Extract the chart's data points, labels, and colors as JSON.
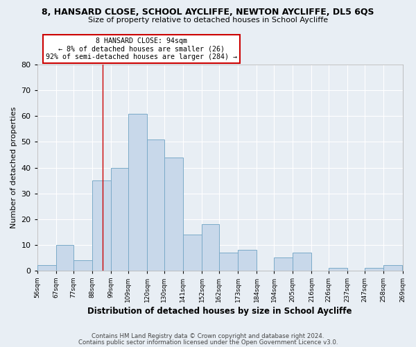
{
  "title1": "8, HANSARD CLOSE, SCHOOL AYCLIFFE, NEWTON AYCLIFFE, DL5 6QS",
  "title2": "Size of property relative to detached houses in School Aycliffe",
  "xlabel": "Distribution of detached houses by size in School Aycliffe",
  "ylabel": "Number of detached properties",
  "bin_edges": [
    56,
    67,
    77,
    88,
    99,
    109,
    120,
    130,
    141,
    152,
    162,
    173,
    184,
    194,
    205,
    216,
    226,
    237,
    247,
    258,
    269
  ],
  "bin_labels": [
    "56sqm",
    "67sqm",
    "77sqm",
    "88sqm",
    "99sqm",
    "109sqm",
    "120sqm",
    "130sqm",
    "141sqm",
    "152sqm",
    "162sqm",
    "173sqm",
    "184sqm",
    "194sqm",
    "205sqm",
    "216sqm",
    "226sqm",
    "237sqm",
    "247sqm",
    "258sqm",
    "269sqm"
  ],
  "values": [
    2,
    10,
    4,
    35,
    40,
    61,
    51,
    44,
    14,
    18,
    7,
    8,
    0,
    5,
    7,
    0,
    1,
    0,
    1,
    2
  ],
  "bar_color": "#c8d8ea",
  "bar_edge_color": "#7aaac8",
  "annotation_title": "8 HANSARD CLOSE: 94sqm",
  "annotation_line1": "← 8% of detached houses are smaller (26)",
  "annotation_line2": "92% of semi-detached houses are larger (284) →",
  "annotation_box_color": "#ffffff",
  "annotation_box_edge": "#cc0000",
  "vline_x": 94,
  "ylim": [
    0,
    80
  ],
  "yticks": [
    0,
    10,
    20,
    30,
    40,
    50,
    60,
    70,
    80
  ],
  "footer1": "Contains HM Land Registry data © Crown copyright and database right 2024.",
  "footer2": "Contains public sector information licensed under the Open Government Licence v3.0.",
  "background_color": "#e8eef4",
  "grid_color": "#ffffff",
  "title1_fontsize": 9,
  "title2_fontsize": 8
}
